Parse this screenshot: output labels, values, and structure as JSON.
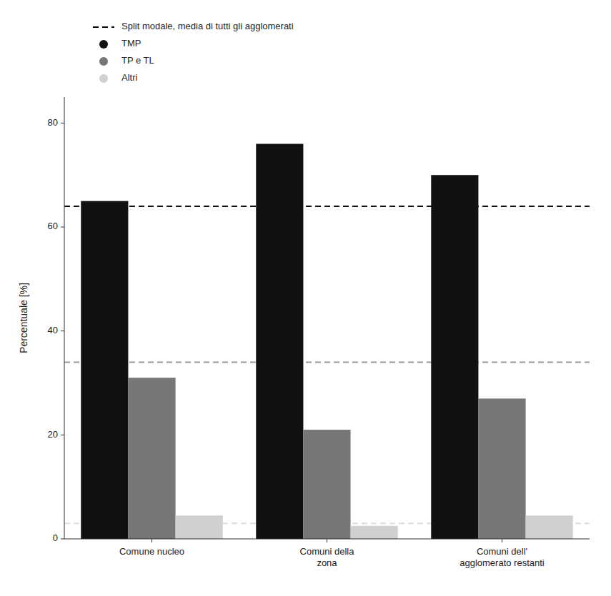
{
  "chart_data": {
    "type": "bar",
    "y_label": "Percentuale [%]",
    "categories": [
      "Comune nucleo",
      "Comuni della\nzona",
      "Comuni dell'\nagglomerato restanti"
    ],
    "series": [
      {
        "name": "TMP",
        "color": "#111111",
        "values": [
          65,
          76,
          70
        ]
      },
      {
        "name": "TP e TL",
        "color": "#777777",
        "values": [
          31,
          21,
          27
        ]
      },
      {
        "name": "Altri",
        "color": "#d0d0d0",
        "values": [
          4.5,
          2.5,
          4.5
        ]
      }
    ],
    "reference_lines": {
      "name": "Split modale, media di tutti gli agglomerati",
      "color": "#000000",
      "line_style": "dashed",
      "values": [
        64,
        34,
        3
      ],
      "colors": [
        "#111111",
        "#999999",
        "#dddddd"
      ]
    },
    "ylim": [
      0,
      85
    ],
    "yticks": [
      0,
      20,
      40,
      60,
      80
    ],
    "grid": false,
    "legend": "above"
  }
}
